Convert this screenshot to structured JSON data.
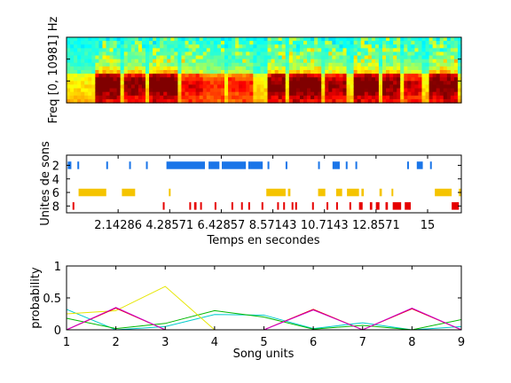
{
  "chart_data": [
    {
      "type": "heatmap",
      "title": "",
      "xlabel": "",
      "ylabel": "Freq [0, 10981] Hz",
      "colormap": "jet",
      "xlim": [
        0,
        16.4
      ],
      "bursts": [
        {
          "t0": 1.2,
          "t1": 2.3,
          "level": 0.95
        },
        {
          "t0": 2.4,
          "t1": 3.3,
          "level": 0.8
        },
        {
          "t0": 3.4,
          "t1": 4.6,
          "level": 0.95
        },
        {
          "t0": 4.7,
          "t1": 5.6,
          "level": 0.55
        },
        {
          "t0": 5.7,
          "t1": 6.6,
          "level": 0.4
        },
        {
          "t0": 6.7,
          "t1": 7.8,
          "level": 0.45
        },
        {
          "t0": 8.3,
          "t1": 9.1,
          "level": 0.85
        },
        {
          "t0": 9.3,
          "t1": 10.6,
          "level": 0.9
        },
        {
          "t0": 10.7,
          "t1": 11.6,
          "level": 0.7
        },
        {
          "t0": 11.9,
          "t1": 13.0,
          "level": 0.95
        },
        {
          "t0": 13.1,
          "t1": 13.9,
          "level": 0.8
        },
        {
          "t0": 14.0,
          "t1": 14.7,
          "level": 0.6
        },
        {
          "t0": 15.0,
          "t1": 16.2,
          "level": 0.9
        }
      ]
    },
    {
      "type": "scatter",
      "title": "",
      "xlabel": "Temps en secondes",
      "ylabel": "Unites de sons",
      "xlim": [
        0,
        16.4
      ],
      "ylim": [
        0.5,
        9
      ],
      "yticks": [
        2,
        4,
        6,
        8
      ],
      "xticks": [
        2.14286,
        4.28571,
        6.42857,
        8.57143,
        10.71429,
        12.85714,
        15
      ],
      "xtick_labels": [
        "2.14286",
        "4.28571",
        "6.42857",
        "8.57143",
        "10.7143",
        "12.8571",
        "15"
      ],
      "series": [
        {
          "unit": 2,
          "color": "#1a75e8",
          "segments": [
            [
              0.05,
              0.2
            ],
            [
              0.45,
              0.5
            ],
            [
              1.65,
              1.7
            ],
            [
              2.6,
              2.65
            ],
            [
              3.3,
              3.35
            ],
            [
              4.15,
              5.75
            ],
            [
              5.9,
              6.35
            ],
            [
              6.45,
              7.45
            ],
            [
              7.55,
              8.15
            ],
            [
              8.35,
              8.4
            ],
            [
              9.1,
              9.15
            ],
            [
              10.45,
              10.5
            ],
            [
              11.05,
              11.35
            ],
            [
              11.6,
              11.65
            ],
            [
              12.0,
              12.05
            ],
            [
              14.15,
              14.2
            ],
            [
              14.55,
              14.8
            ],
            [
              15.1,
              15.15
            ]
          ]
        },
        {
          "unit": 6,
          "color": "#f5c400",
          "segments": [
            [
              0.5,
              1.65
            ],
            [
              2.3,
              2.85
            ],
            [
              4.25,
              4.3
            ],
            [
              8.3,
              9.1
            ],
            [
              9.2,
              9.3
            ],
            [
              10.45,
              10.75
            ],
            [
              11.2,
              11.45
            ],
            [
              11.65,
              12.15
            ],
            [
              12.25,
              12.35
            ],
            [
              13.0,
              13.1
            ],
            [
              13.5,
              13.55
            ],
            [
              15.3,
              16.0
            ],
            [
              16.3,
              16.4
            ]
          ]
        },
        {
          "unit": 8,
          "color": "#e60000",
          "segments": [
            [
              0.25,
              0.3
            ],
            [
              4.0,
              4.05
            ],
            [
              5.1,
              5.15
            ],
            [
              5.3,
              5.4
            ],
            [
              5.55,
              5.6
            ],
            [
              6.15,
              6.2
            ],
            [
              6.85,
              6.9
            ],
            [
              7.25,
              7.3
            ],
            [
              7.55,
              7.6
            ],
            [
              8.1,
              8.15
            ],
            [
              8.75,
              8.8
            ],
            [
              9.0,
              9.05
            ],
            [
              9.35,
              9.4
            ],
            [
              9.5,
              9.55
            ],
            [
              10.2,
              10.25
            ],
            [
              10.8,
              10.85
            ],
            [
              11.2,
              11.25
            ],
            [
              11.75,
              11.8
            ],
            [
              12.15,
              12.3
            ],
            [
              12.6,
              12.7
            ],
            [
              12.85,
              13.0
            ],
            [
              13.25,
              13.35
            ],
            [
              13.55,
              13.9
            ],
            [
              14.05,
              14.3
            ],
            [
              16.0,
              16.3
            ]
          ]
        }
      ]
    },
    {
      "type": "line",
      "title": "",
      "xlabel": "Song units",
      "ylabel": "probability",
      "x": [
        1,
        2,
        3,
        4,
        5,
        6,
        7,
        8,
        9
      ],
      "xlim": [
        1,
        9
      ],
      "ylim": [
        0,
        1
      ],
      "yticks": [
        0,
        0.5,
        1
      ],
      "series": [
        {
          "color": "#00cccc",
          "values": [
            0.32,
            0.0,
            0.05,
            0.24,
            0.23,
            0.02,
            0.11,
            0.0,
            0.05
          ]
        },
        {
          "color": "#00b800",
          "values": [
            0.18,
            0.02,
            0.1,
            0.3,
            0.2,
            0.01,
            0.07,
            0.0,
            0.16
          ]
        },
        {
          "color": "#e6e600",
          "values": [
            0.25,
            0.3,
            0.68,
            0.0,
            0.0,
            0.0,
            0.0,
            0.0,
            0.0
          ]
        },
        {
          "color": "#e60000",
          "values": [
            0.0,
            0.34,
            0.0,
            0.0,
            0.0,
            0.32,
            0.0,
            0.33,
            0.0
          ]
        },
        {
          "color": "#cc00cc",
          "values": [
            0.0,
            0.35,
            0.0,
            0.0,
            0.0,
            0.31,
            0.0,
            0.34,
            0.0
          ]
        }
      ]
    }
  ]
}
